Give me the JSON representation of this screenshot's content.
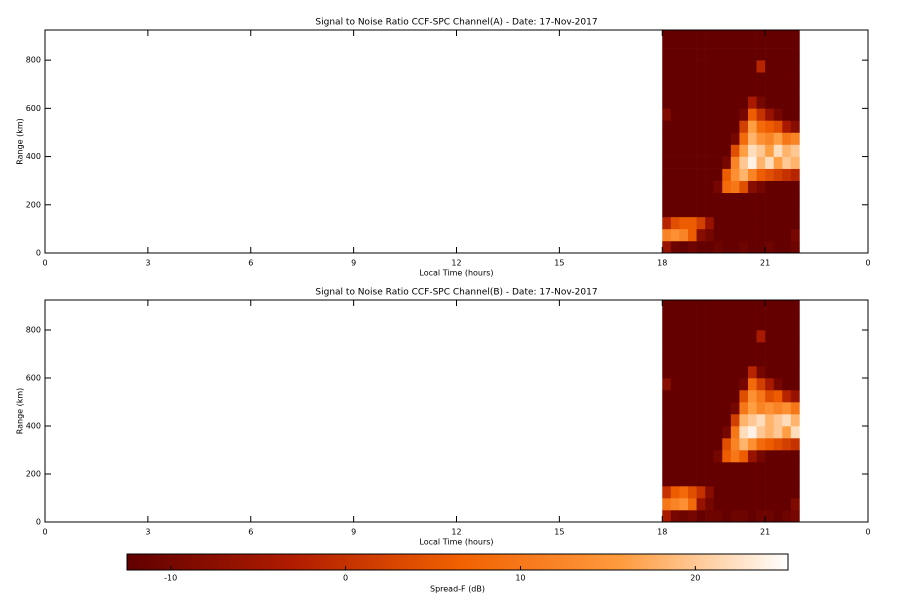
{
  "chart_data": [
    {
      "type": "heatmap",
      "title": "Signal to Noise Ratio CCF-SPC Channel(A) - Date: 17-Nov-2017",
      "xlabel": "Local Time (hours)",
      "ylabel": "Range (km)",
      "xlim": [
        0,
        24
      ],
      "xticks": [
        0,
        3,
        6,
        9,
        12,
        15,
        18,
        21,
        {
          "value": 24,
          "label": "0"
        }
      ],
      "ylim": [
        0,
        925
      ],
      "yticks": [
        0,
        200,
        400,
        600,
        800
      ],
      "x_edges": [
        18,
        18.25,
        18.5,
        18.75,
        19,
        19.25,
        19.5,
        19.75,
        20,
        20.25,
        20.5,
        20.75,
        21,
        21.25,
        21.5,
        21.75,
        22
      ],
      "y_edges": [
        0,
        50,
        100,
        150,
        200,
        250,
        300,
        350,
        400,
        450,
        500,
        550,
        600,
        650,
        700,
        750,
        800,
        850,
        900,
        925
      ],
      "z": [
        [
          -6,
          -11,
          -12,
          -11,
          -12,
          -12,
          -11,
          -12,
          -12,
          -11,
          -12,
          -12,
          -11,
          -12,
          -12,
          -11
        ],
        [
          12,
          14,
          12,
          6,
          -8,
          -10,
          -12,
          -12,
          -12,
          -12,
          -12,
          -12,
          -12,
          -12,
          -12,
          -10
        ],
        [
          -2,
          4,
          6,
          6,
          2,
          -6,
          -12,
          -12,
          -12,
          -12,
          -12,
          -12,
          -12,
          -12,
          -12,
          -12
        ],
        [
          -12,
          -12,
          -12,
          -12,
          -12,
          -12,
          -12,
          -12,
          -12,
          -12,
          -12,
          -12,
          -12,
          -12,
          -12,
          -12
        ],
        [
          -12,
          -12,
          -12,
          -12,
          -12,
          -12,
          -12,
          -12,
          -12,
          -12,
          -12,
          -12,
          -12,
          -12,
          -12,
          -12
        ],
        [
          -12,
          -12,
          -12,
          -12,
          -12,
          -12,
          -10,
          8,
          10,
          4,
          -8,
          -10,
          -12,
          -12,
          -12,
          -12
        ],
        [
          -12,
          -12,
          -12,
          -12,
          -12,
          -12,
          -12,
          6,
          14,
          18,
          12,
          6,
          4,
          2,
          0,
          -2
        ],
        [
          -12,
          -12,
          -12,
          -12,
          -12,
          -12,
          -12,
          -10,
          12,
          20,
          24,
          18,
          22,
          16,
          20,
          18
        ],
        [
          -12,
          -12,
          -12,
          -12,
          -12,
          -12,
          -12,
          -12,
          4,
          16,
          22,
          20,
          16,
          22,
          18,
          20
        ],
        [
          -12,
          -12,
          -12,
          -12,
          -12,
          -12,
          -12,
          -12,
          -10,
          8,
          18,
          14,
          12,
          16,
          10,
          12
        ],
        [
          -12,
          -12,
          -12,
          -12,
          -12,
          -12,
          -12,
          -12,
          -12,
          2,
          16,
          8,
          6,
          4,
          -4,
          -8
        ],
        [
          -9,
          -12,
          -12,
          -12,
          -12,
          -12,
          -12,
          -12,
          -12,
          -10,
          6,
          0,
          -6,
          -10,
          -12,
          -12
        ],
        [
          -12,
          -12,
          -12,
          -12,
          -12,
          -12,
          -12,
          -12,
          -12,
          -12,
          -4,
          -10,
          -12,
          -12,
          -12,
          -12
        ],
        [
          -12,
          -12,
          -12,
          -12,
          -12,
          -12,
          -12,
          -12,
          -12,
          -12,
          -12,
          -12,
          -12,
          -12,
          -12,
          -12
        ],
        [
          -12,
          -12,
          -12,
          -12,
          -12,
          -12,
          -12,
          -12,
          -12,
          -12,
          -12,
          -12,
          -12,
          -12,
          -12,
          -12
        ],
        [
          -12,
          -12,
          -12,
          -12,
          -12,
          -12,
          -12,
          -12,
          -12,
          -12,
          -12,
          -2,
          -12,
          -12,
          -12,
          -12
        ],
        [
          -12,
          -12,
          -12,
          -12,
          -12,
          -12,
          -12,
          -12,
          -12,
          -12,
          -12,
          -12,
          -12,
          -12,
          -12,
          -12
        ],
        [
          -12,
          -12,
          -12,
          -12,
          -12,
          -12,
          -12,
          -12,
          -12,
          -12,
          -12,
          -12,
          -12,
          -12,
          -12,
          -12
        ],
        [
          -12,
          -12,
          -12,
          -12,
          -12,
          -12,
          -12,
          -12,
          -12,
          -12,
          -12,
          -12,
          -12,
          -12,
          -12,
          -12
        ]
      ]
    },
    {
      "type": "heatmap",
      "title": "Signal to Noise Ratio CCF-SPC Channel(B) - Date: 17-Nov-2017",
      "xlabel": "Local Time (hours)",
      "ylabel": "Range (km)",
      "xlim": [
        0,
        24
      ],
      "xticks": [
        0,
        3,
        6,
        9,
        12,
        15,
        18,
        21,
        {
          "value": 24,
          "label": "0"
        }
      ],
      "ylim": [
        0,
        925
      ],
      "yticks": [
        0,
        200,
        400,
        600,
        800
      ],
      "x_edges": [
        18,
        18.25,
        18.5,
        18.75,
        19,
        19.25,
        19.5,
        19.75,
        20,
        20.25,
        20.5,
        20.75,
        21,
        21.25,
        21.5,
        21.75,
        22
      ],
      "y_edges": [
        0,
        50,
        100,
        150,
        200,
        250,
        300,
        350,
        400,
        450,
        500,
        550,
        600,
        650,
        700,
        750,
        800,
        850,
        900,
        925
      ],
      "z": [
        [
          -4,
          -10,
          -11,
          -10,
          -12,
          -11,
          -11,
          -12,
          -11,
          -11,
          -12,
          -11,
          -11,
          -12,
          -11,
          -10
        ],
        [
          10,
          12,
          14,
          8,
          -6,
          -10,
          -12,
          -12,
          -12,
          -12,
          -12,
          -12,
          -12,
          -12,
          -12,
          -9
        ],
        [
          0,
          6,
          8,
          4,
          0,
          -8,
          -12,
          -12,
          -12,
          -12,
          -12,
          -12,
          -12,
          -12,
          -12,
          -12
        ],
        [
          -12,
          -12,
          -12,
          -12,
          -12,
          -12,
          -12,
          -12,
          -12,
          -12,
          -12,
          -12,
          -12,
          -12,
          -12,
          -12
        ],
        [
          -12,
          -12,
          -12,
          -12,
          -12,
          -12,
          -12,
          -12,
          -12,
          -12,
          -12,
          -12,
          -12,
          -12,
          -12,
          -12
        ],
        [
          -12,
          -12,
          -12,
          -12,
          -12,
          -12,
          -10,
          6,
          10,
          6,
          -6,
          -10,
          -12,
          -12,
          -12,
          -12
        ],
        [
          -12,
          -12,
          -12,
          -12,
          -12,
          -12,
          -12,
          4,
          12,
          18,
          14,
          8,
          6,
          4,
          2,
          0
        ],
        [
          -12,
          -12,
          -12,
          -12,
          -12,
          -12,
          -12,
          -10,
          10,
          22,
          24,
          20,
          18,
          20,
          16,
          22
        ],
        [
          -12,
          -12,
          -12,
          -12,
          -12,
          -12,
          -12,
          -12,
          2,
          18,
          20,
          22,
          18,
          20,
          22,
          18
        ],
        [
          -12,
          -12,
          -12,
          -12,
          -12,
          -12,
          -12,
          -12,
          -10,
          10,
          16,
          12,
          14,
          12,
          14,
          10
        ],
        [
          -12,
          -12,
          -12,
          -12,
          -12,
          -12,
          -12,
          -12,
          -12,
          4,
          14,
          10,
          4,
          6,
          -2,
          -6
        ],
        [
          -8,
          -12,
          -12,
          -12,
          -12,
          -12,
          -12,
          -12,
          -12,
          -10,
          8,
          2,
          -4,
          -10,
          -12,
          -12
        ],
        [
          -12,
          -12,
          -12,
          -12,
          -12,
          -12,
          -12,
          -12,
          -12,
          -12,
          -2,
          -10,
          -12,
          -12,
          -12,
          -12
        ],
        [
          -12,
          -12,
          -12,
          -12,
          -12,
          -12,
          -12,
          -12,
          -12,
          -12,
          -12,
          -12,
          -12,
          -12,
          -12,
          -12
        ],
        [
          -12,
          -12,
          -12,
          -12,
          -12,
          -12,
          -12,
          -12,
          -12,
          -12,
          -12,
          -12,
          -12,
          -12,
          -12,
          -12
        ],
        [
          -12,
          -12,
          -12,
          -12,
          -12,
          -12,
          -12,
          -12,
          -12,
          -12,
          -12,
          -4,
          -12,
          -12,
          -12,
          -12
        ],
        [
          -12,
          -12,
          -12,
          -12,
          -12,
          -12,
          -12,
          -12,
          -12,
          -12,
          -12,
          -12,
          -12,
          -12,
          -12,
          -12
        ],
        [
          -12,
          -12,
          -12,
          -12,
          -12,
          -12,
          -12,
          -12,
          -12,
          -12,
          -12,
          -12,
          -12,
          -12,
          -12,
          -12
        ],
        [
          -12,
          -12,
          -12,
          -12,
          -12,
          -12,
          -12,
          -12,
          -12,
          -12,
          -12,
          -12,
          -12,
          -12,
          -12,
          -12
        ]
      ]
    }
  ],
  "colorbar": {
    "label": "Spread-F (dB)",
    "lim": [
      -12.5,
      25.3
    ],
    "ticks": [
      -10,
      0,
      10,
      20
    ],
    "colors": [
      "#600000",
      "#b01c00",
      "#f06000",
      "#ff9c40",
      "#ffffff"
    ]
  }
}
